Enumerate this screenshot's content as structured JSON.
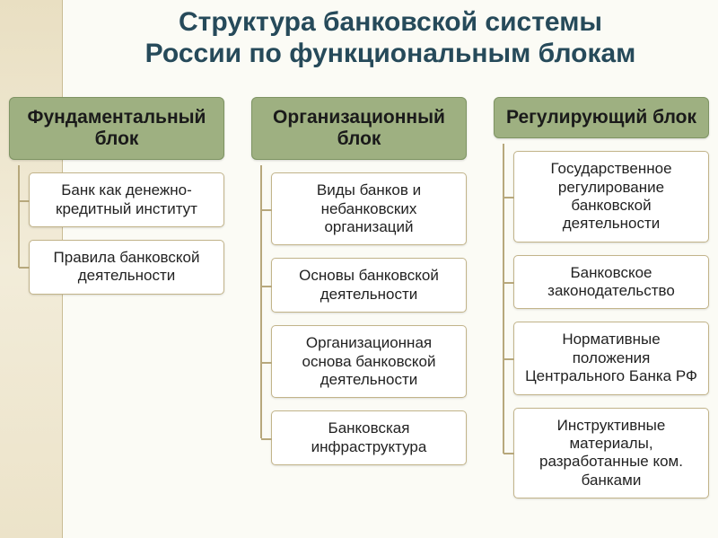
{
  "type": "tree",
  "background_color": "#fbfbf5",
  "stripe_gradient": [
    "#e9dfc2",
    "#f2ecd9",
    "#ece3c9"
  ],
  "title": {
    "line1": "Структура банковской системы",
    "line2": "России по функциональным блокам",
    "color": "#264a5a",
    "fontsize": 30
  },
  "connector_color": "#b7a87c",
  "header_style": {
    "bg": "#9eb081",
    "border": "#7e9463",
    "fontsize": 21,
    "color": "#1a1a1a"
  },
  "item_style": {
    "bg": "#ffffff",
    "border": "#c2b48a",
    "fontsize": 17,
    "color": "#222222"
  },
  "columns": [
    {
      "header": "Фундаментальный блок",
      "items": [
        "Банк как денежно-кредитный институт",
        "Правила банковской деятельности"
      ]
    },
    {
      "header": "Организационный блок",
      "items": [
        "Виды банков и небанковских организаций",
        "Основы банковской деятельности",
        "Организационная основа банковской деятельности",
        "Банковская инфраструктура"
      ]
    },
    {
      "header": "Регулирующий блок",
      "items": [
        "Государственное регулирование банковской деятельности",
        "Банковское законодательство",
        "Нормативные положения Центрального Банка РФ",
        "Инструктивные материалы, разработанные ком. банками"
      ]
    }
  ]
}
